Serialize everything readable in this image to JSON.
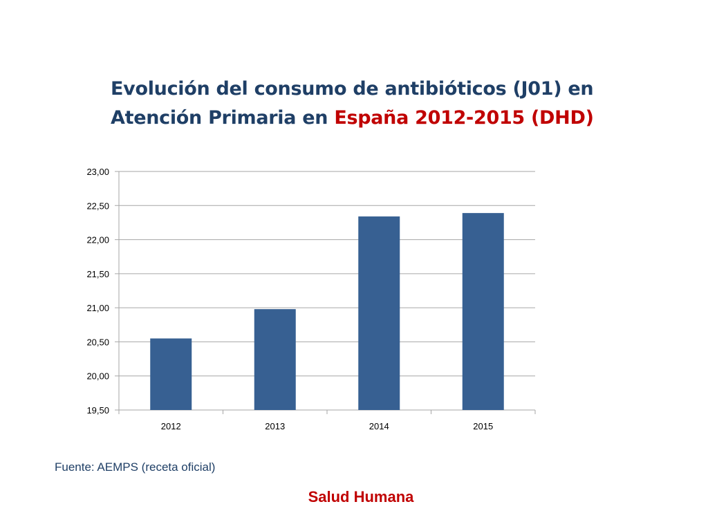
{
  "title": {
    "line1": "Evolución del consumo de antibióticos (J01) en",
    "line2_part1": "Atención Primaria en ",
    "line2_part2": "España 2012-2015 (DHD)"
  },
  "source": "Fuente: AEMPS (receta oficial)",
  "footer": "Salud Humana",
  "colors": {
    "title": "#1f3f66",
    "accent": "#c00000",
    "bar": "#376092",
    "grid": "#a6a6a6"
  },
  "chart_data": {
    "type": "bar",
    "title": "Evolución del consumo de antibióticos (J01) en Atención Primaria en España 2012-2015 (DHD)",
    "xlabel": "",
    "ylabel": "",
    "categories": [
      "2012",
      "2013",
      "2014",
      "2015"
    ],
    "values": [
      20.55,
      20.98,
      22.34,
      22.39
    ],
    "ylim": [
      19.5,
      23.0
    ],
    "yticks": [
      "19,50",
      "20,00",
      "20,50",
      "21,00",
      "21,50",
      "22,00",
      "22,50",
      "23,00"
    ],
    "ytick_values": [
      19.5,
      20.0,
      20.5,
      21.0,
      21.5,
      22.0,
      22.5,
      23.0
    ],
    "grid": true,
    "legend": "none"
  }
}
